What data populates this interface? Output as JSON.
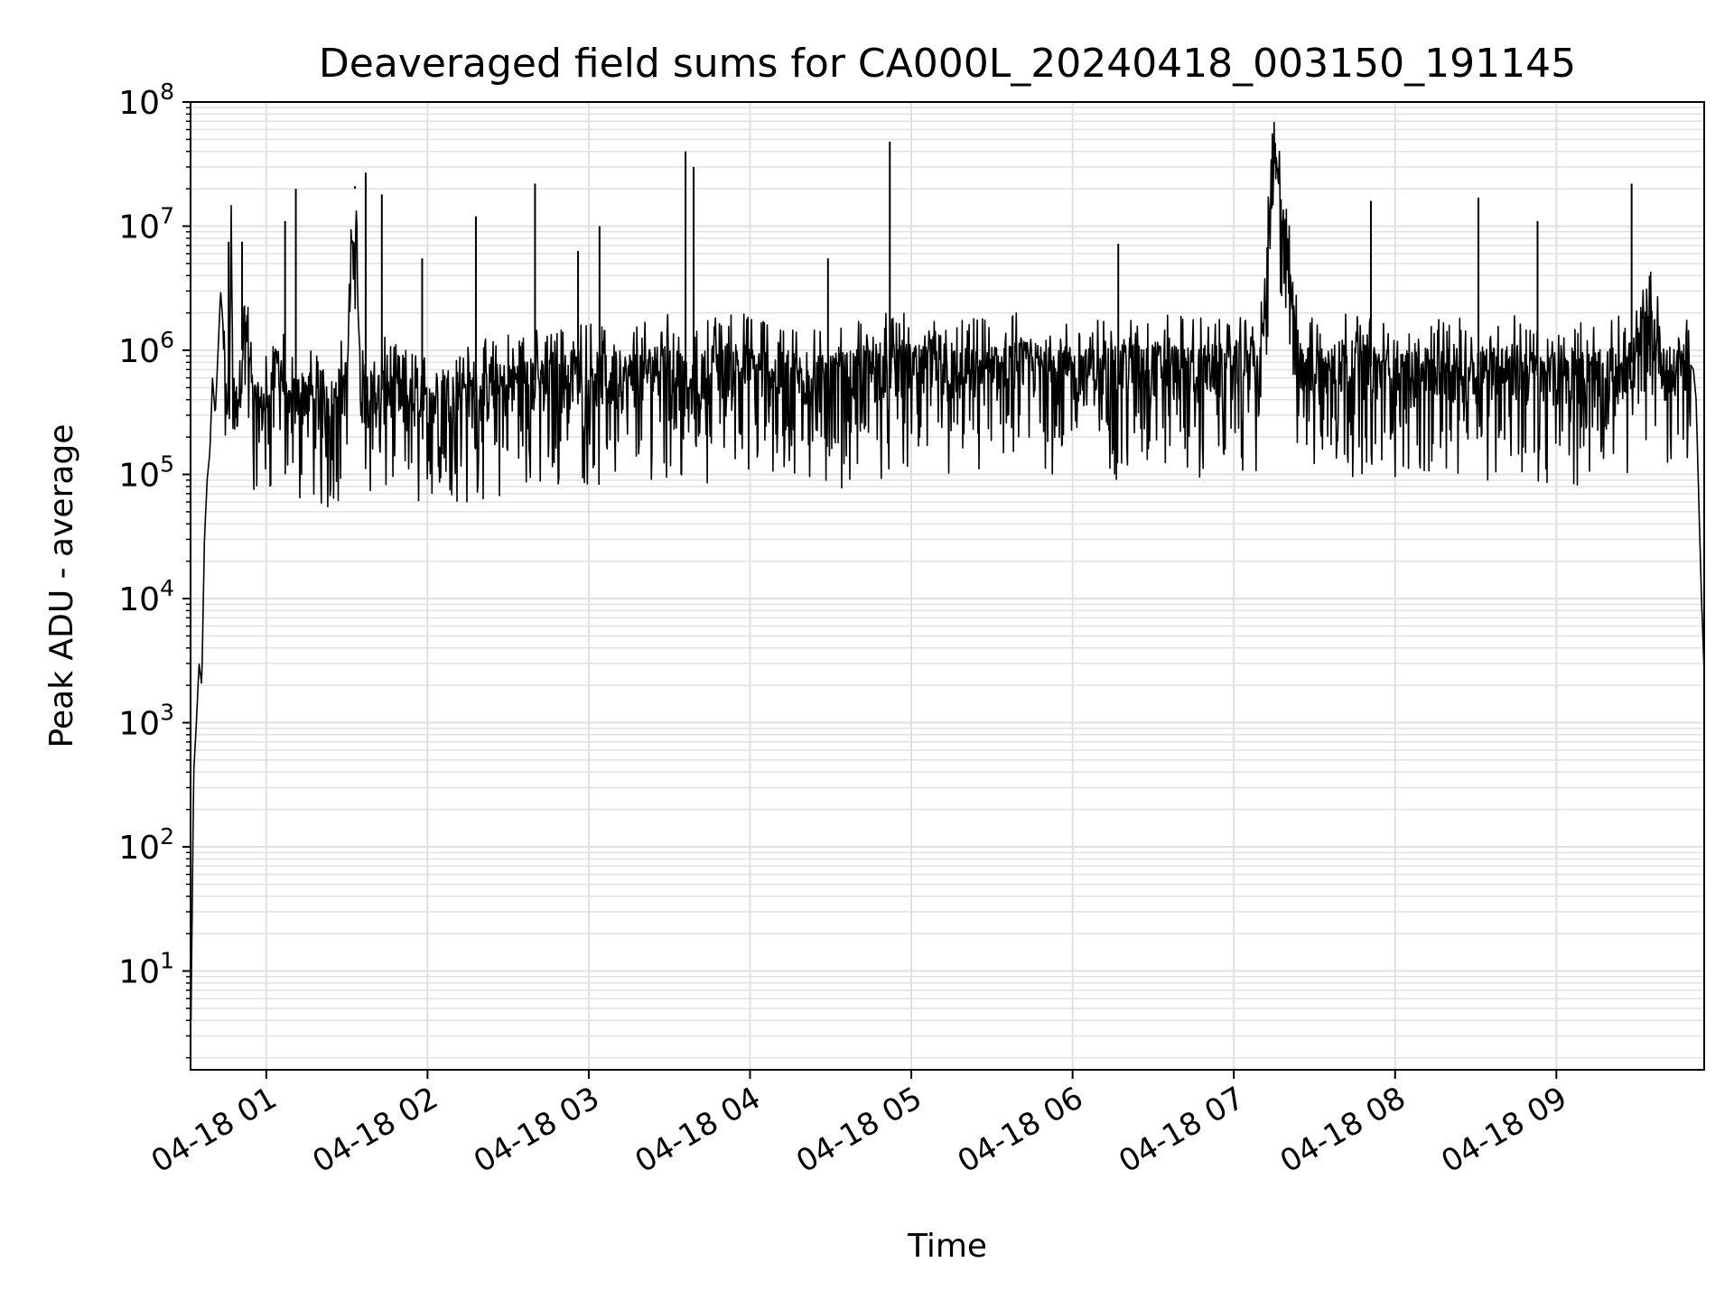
{
  "chart_data": {
    "type": "line",
    "title": "Deaveraged field sums for CA000L_20240418_003150_191145",
    "xlabel": "Time",
    "ylabel": "Peak ADU - average",
    "yscale": "log",
    "ylim": [
      1.6,
      100000000
    ],
    "xlim": [
      "2024-04-18 00:31:50",
      "2024-04-18 09:55:00"
    ],
    "grid": true,
    "line_color": "#000000",
    "grid_color": "#e0e0e0",
    "x_ticks": [
      {
        "t": "2024-04-18 01:00",
        "label": "04-18 01"
      },
      {
        "t": "2024-04-18 02:00",
        "label": "04-18 02"
      },
      {
        "t": "2024-04-18 03:00",
        "label": "04-18 03"
      },
      {
        "t": "2024-04-18 04:00",
        "label": "04-18 04"
      },
      {
        "t": "2024-04-18 05:00",
        "label": "04-18 05"
      },
      {
        "t": "2024-04-18 06:00",
        "label": "04-18 06"
      },
      {
        "t": "2024-04-18 07:00",
        "label": "04-18 07"
      },
      {
        "t": "2024-04-18 08:00",
        "label": "04-18 08"
      },
      {
        "t": "2024-04-18 09:00",
        "label": "04-18 09"
      }
    ],
    "y_ticks": [
      {
        "v": 10,
        "base": "10",
        "exp": "1"
      },
      {
        "v": 100,
        "base": "10",
        "exp": "2"
      },
      {
        "v": 1000,
        "base": "10",
        "exp": "3"
      },
      {
        "v": 10000,
        "base": "10",
        "exp": "4"
      },
      {
        "v": 100000,
        "base": "10",
        "exp": "5"
      },
      {
        "v": 1000000,
        "base": "10",
        "exp": "6"
      },
      {
        "v": 10000000,
        "base": "10",
        "exp": "7"
      },
      {
        "v": 100000000,
        "base": "10",
        "exp": "8"
      }
    ],
    "series": [
      {
        "x": [
          "2024-04-18 00:32",
          "2024-04-18 00:33",
          "2024-04-18 00:34",
          "2024-04-18 00:35",
          "2024-04-18 00:36",
          "2024-04-18 00:37",
          "2024-04-18 00:38",
          "2024-04-18 00:39",
          "2024-04-18 00:40",
          "2024-04-18 00:41",
          "2024-04-18 00:42",
          "2024-04-18 00:43",
          "2024-04-18 00:44",
          "2024-04-18 00:45",
          "2024-04-18 00:46",
          "2024-04-18 00:47",
          "2024-04-18 00:48",
          "2024-04-18 00:50",
          "2024-04-18 00:52",
          "2024-04-18 00:55",
          "2024-04-18 00:58",
          "2024-04-18 01:00",
          "2024-04-18 01:05",
          "2024-04-18 01:08",
          "2024-04-18 01:10",
          "2024-04-18 01:15",
          "2024-04-18 01:20",
          "2024-04-18 01:25",
          "2024-04-18 01:30",
          "2024-04-18 01:33",
          "2024-04-18 01:35",
          "2024-04-18 01:40",
          "2024-04-18 01:45",
          "2024-04-18 01:50",
          "2024-04-18 01:55",
          "2024-04-18 02:00",
          "2024-04-18 02:08",
          "2024-04-18 02:15",
          "2024-04-18 02:25",
          "2024-04-18 02:35",
          "2024-04-18 02:45",
          "2024-04-18 02:55",
          "2024-04-18 03:03",
          "2024-04-18 03:10",
          "2024-04-18 03:20",
          "2024-04-18 03:30",
          "2024-04-18 03:38",
          "2024-04-18 03:45",
          "2024-04-18 03:55",
          "2024-04-18 04:05",
          "2024-04-18 04:15",
          "2024-04-18 04:25",
          "2024-04-18 04:35",
          "2024-04-18 04:45",
          "2024-04-18 04:52",
          "2024-04-18 05:00",
          "2024-04-18 05:10",
          "2024-04-18 05:20",
          "2024-04-18 05:30",
          "2024-04-18 05:40",
          "2024-04-18 05:50",
          "2024-04-18 06:00",
          "2024-04-18 06:10",
          "2024-04-18 06:20",
          "2024-04-18 06:30",
          "2024-04-18 06:40",
          "2024-04-18 06:50",
          "2024-04-18 07:00",
          "2024-04-18 07:10",
          "2024-04-18 07:15",
          "2024-04-18 07:25",
          "2024-04-18 07:35",
          "2024-04-18 07:45",
          "2024-04-18 07:55",
          "2024-04-18 08:05",
          "2024-04-18 08:15",
          "2024-04-18 08:25",
          "2024-04-18 08:35",
          "2024-04-18 08:45",
          "2024-04-18 08:55",
          "2024-04-18 09:05",
          "2024-04-18 09:12",
          "2024-04-18 09:20",
          "2024-04-18 09:28",
          "2024-04-18 09:35",
          "2024-04-18 09:42",
          "2024-04-18 09:48",
          "2024-04-18 09:51",
          "2024-04-18 09:52",
          "2024-04-18 09:53",
          "2024-04-18 09:54",
          "2024-04-18 09:55"
        ],
        "y": [
          4,
          400,
          1000,
          3000,
          2000,
          30000,
          90000,
          150000,
          600000,
          300000,
          900000,
          3000000,
          1500000,
          400000,
          500000,
          7000000,
          300000,
          500000,
          2000000,
          400000,
          350000,
          400000,
          900000,
          300000,
          400000,
          500000,
          350000,
          400000,
          600000,
          20000000,
          500000,
          450000,
          500000,
          400000,
          400000,
          350000,
          500000,
          450000,
          500000,
          600000,
          550000,
          700000,
          650000,
          600000,
          700000,
          800000,
          500000,
          750000,
          800000,
          700000,
          650000,
          600000,
          650000,
          700000,
          800000,
          750000,
          700000,
          700000,
          700000,
          800000,
          750000,
          700000,
          700000,
          750000,
          800000,
          750000,
          700000,
          800000,
          800000,
          40000000,
          700000,
          750000,
          800000,
          700000,
          650000,
          700000,
          700000,
          750000,
          750000,
          600000,
          700000,
          650000,
          700000,
          800000,
          1800000,
          600000,
          900000,
          700000,
          400000,
          60000,
          10000,
          2500
        ],
        "spikes": [
          {
            "t": "2024-04-18 00:46",
            "y": 7500000
          },
          {
            "t": "2024-04-18 00:51",
            "y": 7500000
          },
          {
            "t": "2024-04-18 01:07",
            "y": 11000000
          },
          {
            "t": "2024-04-18 01:11",
            "y": 20000000
          },
          {
            "t": "2024-04-18 01:33",
            "y": 21000000
          },
          {
            "t": "2024-04-18 01:37",
            "y": 27000000
          },
          {
            "t": "2024-04-18 01:43",
            "y": 18000000
          },
          {
            "t": "2024-04-18 01:58",
            "y": 5500000
          },
          {
            "t": "2024-04-18 02:18",
            "y": 12000000
          },
          {
            "t": "2024-04-18 02:40",
            "y": 22000000
          },
          {
            "t": "2024-04-18 02:56",
            "y": 6300000
          },
          {
            "t": "2024-04-18 03:04",
            "y": 10000000
          },
          {
            "t": "2024-04-18 03:36",
            "y": 40000000
          },
          {
            "t": "2024-04-18 03:39",
            "y": 30000000
          },
          {
            "t": "2024-04-18 04:29",
            "y": 5500000
          },
          {
            "t": "2024-04-18 04:52",
            "y": 48000000
          },
          {
            "t": "2024-04-18 06:17",
            "y": 7200000
          },
          {
            "t": "2024-04-18 07:15",
            "y": 44000000
          },
          {
            "t": "2024-04-18 07:51",
            "y": 16000000
          },
          {
            "t": "2024-04-18 08:31",
            "y": 17000000
          },
          {
            "t": "2024-04-18 08:53",
            "y": 11000000
          },
          {
            "t": "2024-04-18 09:28",
            "y": 22000000
          }
        ]
      }
    ]
  }
}
